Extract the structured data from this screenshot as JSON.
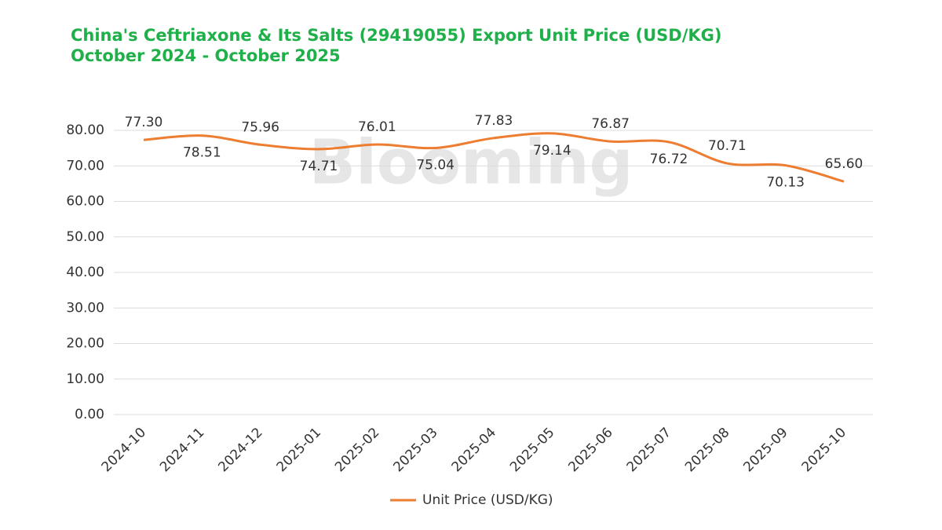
{
  "chart_data": {
    "type": "line",
    "title": "China's Ceftriaxone & Its Salts (29419055) Export Unit Price (USD/KG)",
    "subtitle": "October 2024 - October 2025",
    "watermark": "Blooming",
    "categories": [
      "2024-10",
      "2024-11",
      "2024-12",
      "2025-01",
      "2025-02",
      "2025-03",
      "2025-04",
      "2025-05",
      "2025-06",
      "2025-07",
      "2025-08",
      "2025-09",
      "2025-10"
    ],
    "series": [
      {
        "name": "Unit Price (USD/KG)",
        "color": "#ed7d31",
        "values": [
          77.3,
          78.51,
          75.96,
          74.71,
          76.01,
          75.04,
          77.83,
          79.14,
          76.87,
          76.72,
          70.71,
          70.13,
          65.6
        ],
        "value_labels": [
          "77.30",
          "78.51",
          "75.96",
          "74.71",
          "76.01",
          "75.04",
          "77.83",
          "79.14",
          "76.87",
          "76.72",
          "70.71",
          "70.13",
          "65.60"
        ]
      }
    ],
    "ylim": [
      0,
      80
    ],
    "yticks": [
      {
        "value": 0,
        "label": "0.00"
      },
      {
        "value": 10,
        "label": "10.00"
      },
      {
        "value": 20,
        "label": "20.00"
      },
      {
        "value": 30,
        "label": "30.00"
      },
      {
        "value": 40,
        "label": "40.00"
      },
      {
        "value": 50,
        "label": "50.00"
      },
      {
        "value": 60,
        "label": "60.00"
      },
      {
        "value": 70,
        "label": "70.00"
      },
      {
        "value": 80,
        "label": "80.00"
      }
    ],
    "grid": true,
    "smooth": true,
    "legend": "bottom"
  }
}
